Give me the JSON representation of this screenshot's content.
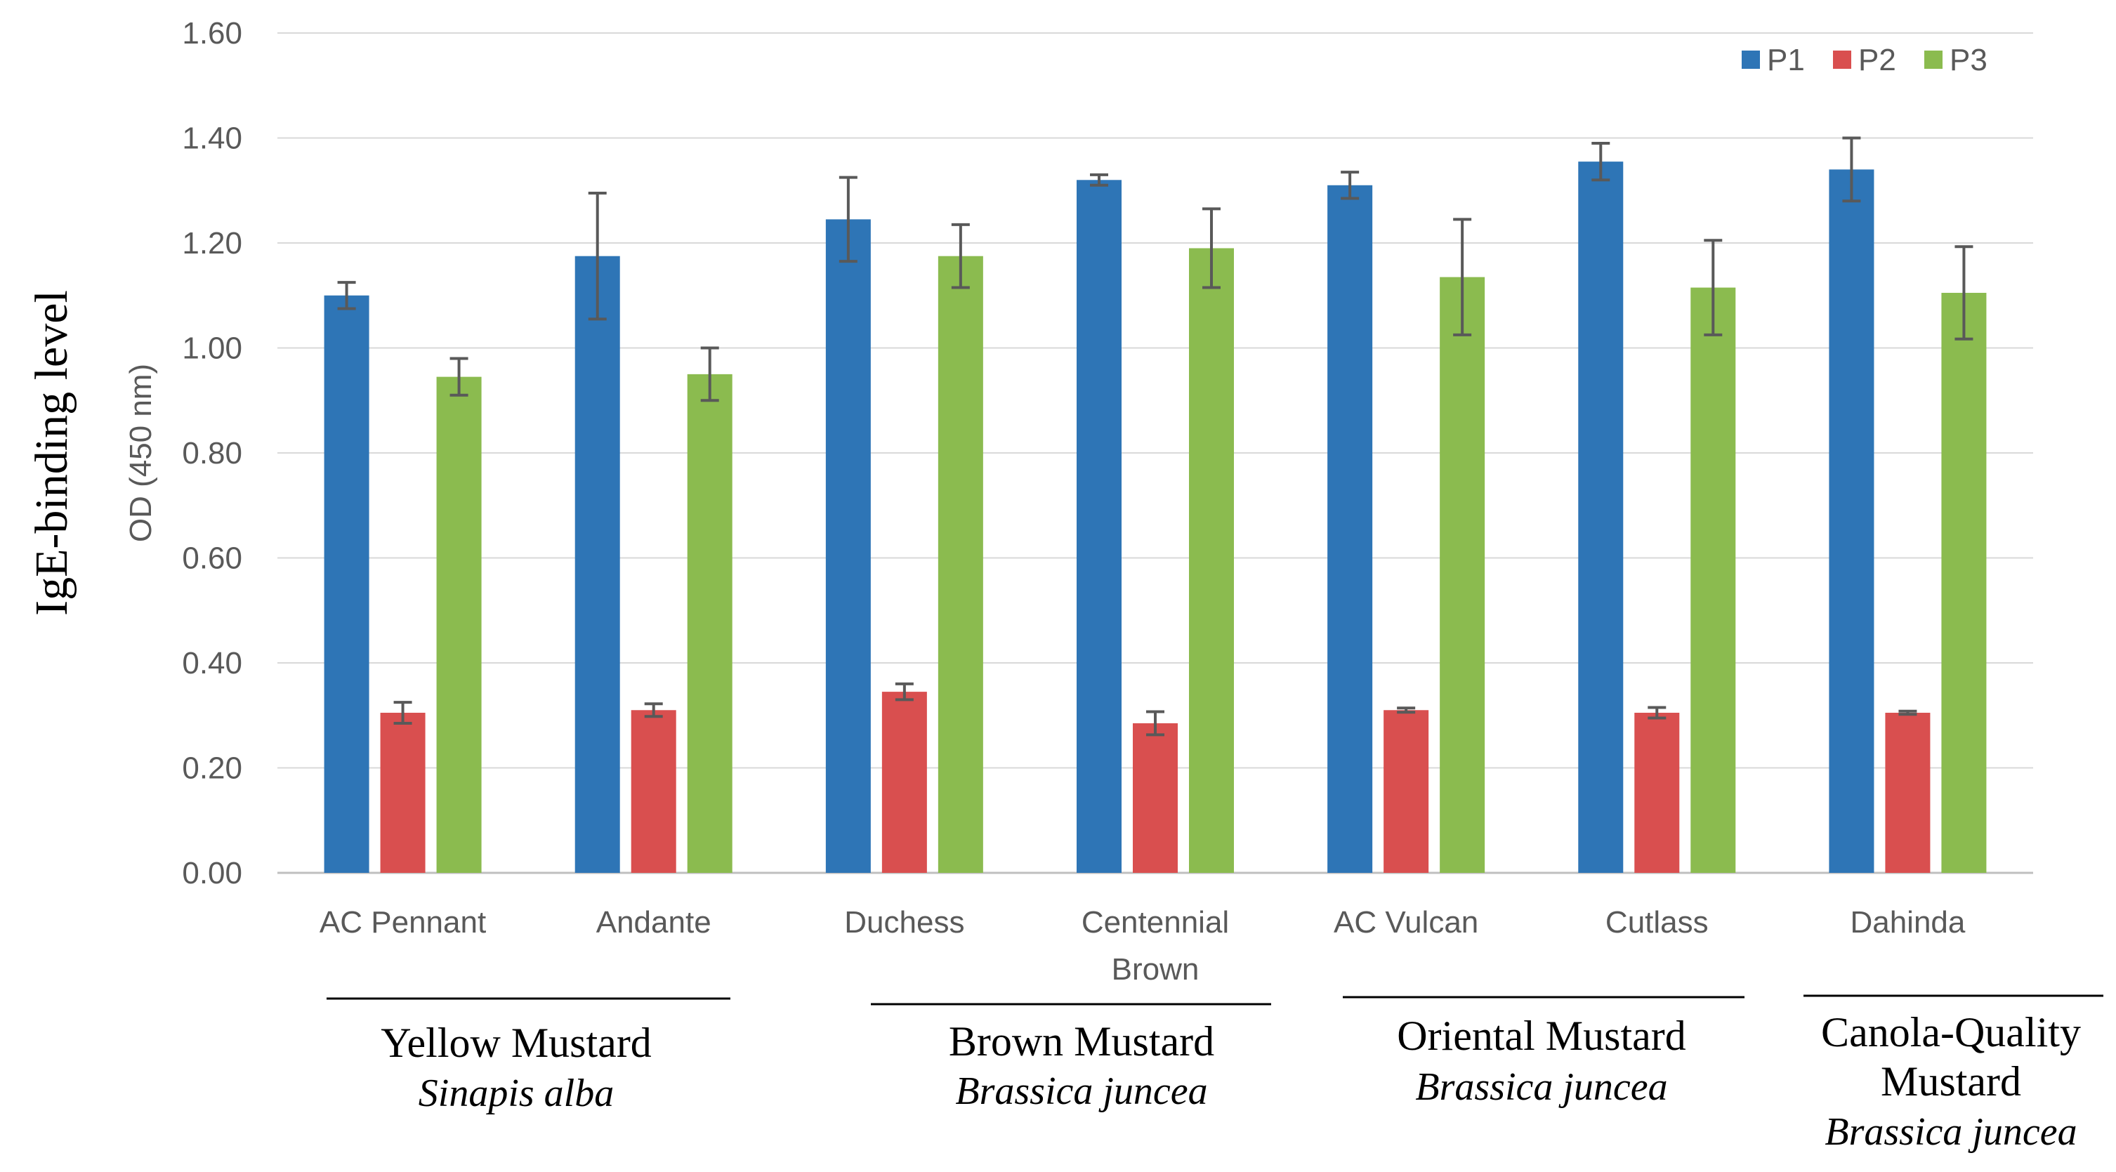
{
  "chart_data": {
    "type": "bar",
    "title": "",
    "ylabel": "IgE-binding  level",
    "ylabel_units": "OD (450 nm)",
    "xlabel": "",
    "ylim": [
      0,
      1.6
    ],
    "yticks": [
      "0.00",
      "0.20",
      "0.40",
      "0.60",
      "0.80",
      "1.00",
      "1.20",
      "1.40",
      "1.60"
    ],
    "grid": true,
    "legend_position": "top-right",
    "categories": [
      [
        "AC Pennant"
      ],
      [
        "Andante"
      ],
      [
        "Duchess"
      ],
      [
        "Centennial",
        "Brown"
      ],
      [
        "AC Vulcan"
      ],
      [
        "Cutlass"
      ],
      [
        "Dahinda"
      ]
    ],
    "series": [
      {
        "name": "P1",
        "color": "#2e75b6",
        "values": [
          1.1,
          1.175,
          1.245,
          1.32,
          1.31,
          1.355,
          1.34
        ],
        "errors": [
          0.025,
          0.12,
          0.08,
          0.01,
          0.025,
          0.035,
          0.06
        ]
      },
      {
        "name": "P2",
        "color": "#d94f4f",
        "values": [
          0.305,
          0.31,
          0.345,
          0.285,
          0.31,
          0.305,
          0.305
        ],
        "errors": [
          0.02,
          0.012,
          0.015,
          0.022,
          0.004,
          0.01,
          0.003
        ]
      },
      {
        "name": "P3",
        "color": "#8bbb4f",
        "values": [
          0.945,
          0.95,
          1.175,
          1.19,
          1.135,
          1.115,
          1.105
        ],
        "errors": [
          0.035,
          0.05,
          0.06,
          0.075,
          0.11,
          0.09,
          0.088
        ]
      }
    ],
    "groups": [
      {
        "name": [
          "Yellow Mustard"
        ],
        "species": "Sinapis alba"
      },
      {
        "name": [
          "Brown Mustard"
        ],
        "species": "Brassica juncea"
      },
      {
        "name": [
          "Oriental Mustard"
        ],
        "species": "Brassica juncea"
      },
      {
        "name": [
          "Canola-Quality",
          "Mustard"
        ],
        "species": "Brassica juncea"
      }
    ]
  },
  "colors": {
    "grid": "#d9d9d9",
    "axis": "#bfbfbf",
    "error_bar": "#595959",
    "text": "#595959"
  }
}
